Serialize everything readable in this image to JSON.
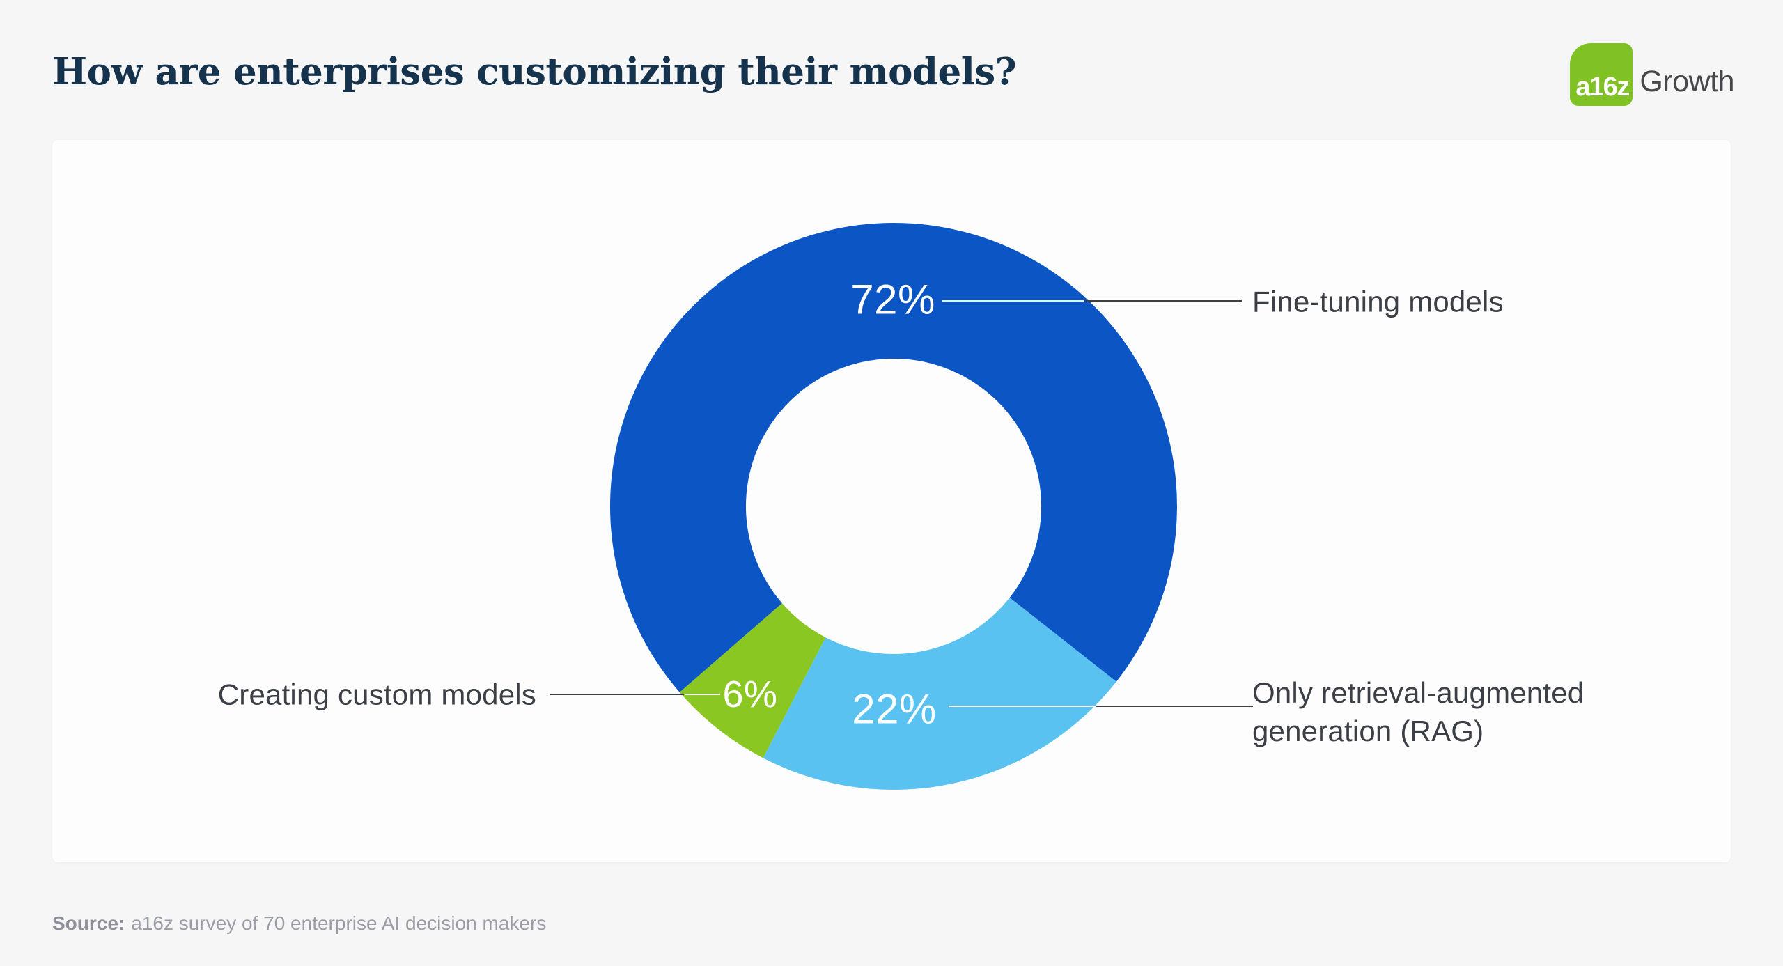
{
  "header": {
    "title": "How are enterprises customizing their models?",
    "logo": {
      "badge_text": "a16z",
      "wordmark": "Growth",
      "badge_color": "#80c223"
    }
  },
  "chart_data": {
    "type": "pie",
    "variant": "donut",
    "title": "How are enterprises customizing their models?",
    "start_angle_deg": 229,
    "hole_ratio": 0.521,
    "legend_position": "callout-labels",
    "segments": [
      {
        "label": "Fine-tuning models",
        "value": 72,
        "display": "72%",
        "color": "#0b56c4"
      },
      {
        "label": "Only retrieval-augmented generation (RAG)",
        "value": 22,
        "display": "22%",
        "color": "#59c2f0"
      },
      {
        "label": "Creating custom models",
        "value": 6,
        "display": "6%",
        "color": "#8bc722"
      }
    ]
  },
  "footer": {
    "source_prefix": "Source:",
    "source_text": "a16z survey of 70 enterprise AI decision makers"
  },
  "colors": {
    "page_background": "#f6f6f7",
    "card_background": "#fdfdfe",
    "title_text": "#15334d",
    "label_text": "#3c4046",
    "leader_line_dark": "#3d4045",
    "source_text": "#9a9ca6"
  }
}
